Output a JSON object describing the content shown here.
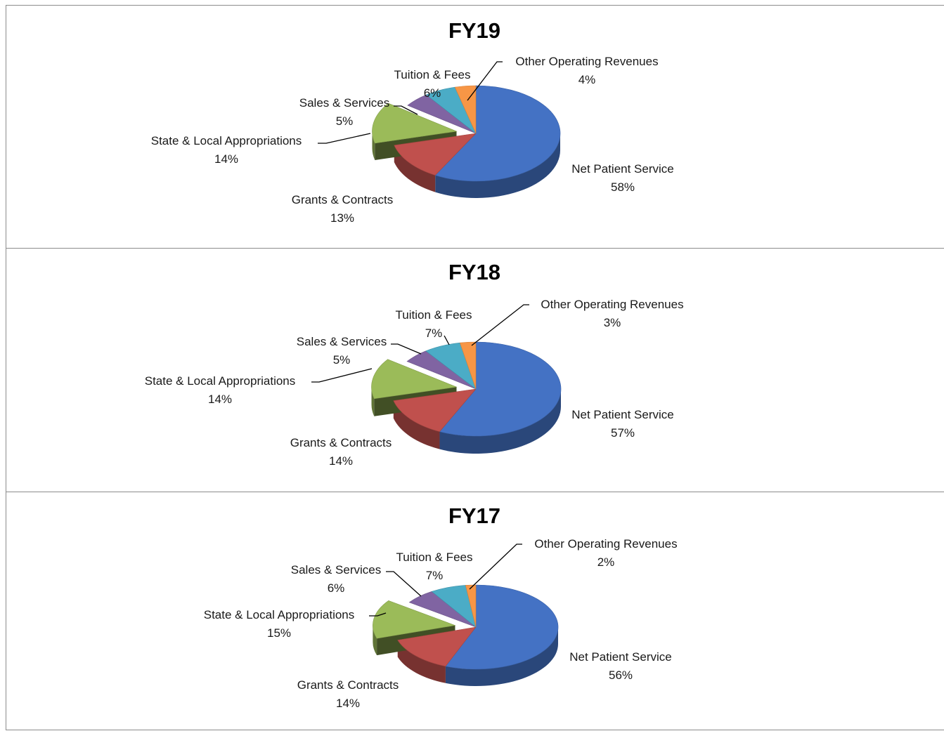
{
  "colors": {
    "Net Patient Service": "#4472C4",
    "Grants & Contracts": "#C0504D",
    "State & Local Appropriations": "#9BBB59",
    "Sales & Services": "#8064A2",
    "Tuition & Fees": "#4BACC6",
    "Other Operating Revenues": "#F79646"
  },
  "chart_data": [
    {
      "type": "pie",
      "title": "FY19",
      "slices": [
        {
          "label": "Net Patient Service",
          "value": 58,
          "value_label": "58%"
        },
        {
          "label": "Grants & Contracts",
          "value": 13,
          "value_label": "13%"
        },
        {
          "label": "State & Local Appropriations",
          "value": 14,
          "value_label": "14%"
        },
        {
          "label": "Sales & Services",
          "value": 5,
          "value_label": "5%"
        },
        {
          "label": "Tuition & Fees",
          "value": 6,
          "value_label": "6%"
        },
        {
          "label": "Other Operating Revenues",
          "value": 4,
          "value_label": "4%"
        }
      ]
    },
    {
      "type": "pie",
      "title": "FY18",
      "slices": [
        {
          "label": "Net Patient Service",
          "value": 57,
          "value_label": "57%"
        },
        {
          "label": "Grants & Contracts",
          "value": 14,
          "value_label": "14%"
        },
        {
          "label": "State & Local Appropriations",
          "value": 14,
          "value_label": "14%"
        },
        {
          "label": "Sales & Services",
          "value": 5,
          "value_label": "5%"
        },
        {
          "label": "Tuition & Fees",
          "value": 7,
          "value_label": "7%"
        },
        {
          "label": "Other Operating Revenues",
          "value": 3,
          "value_label": "3%"
        }
      ]
    },
    {
      "type": "pie",
      "title": "FY17",
      "slices": [
        {
          "label": "Net Patient Service",
          "value": 56,
          "value_label": "56%"
        },
        {
          "label": "Grants & Contracts",
          "value": 14,
          "value_label": "14%"
        },
        {
          "label": "State & Local Appropriations",
          "value": 15,
          "value_label": "15%"
        },
        {
          "label": "Sales & Services",
          "value": 6,
          "value_label": "6%"
        },
        {
          "label": "Tuition & Fees",
          "value": 7,
          "value_label": "7%"
        },
        {
          "label": "Other Operating Revenues",
          "value": 2,
          "value_label": "2%"
        }
      ]
    }
  ]
}
